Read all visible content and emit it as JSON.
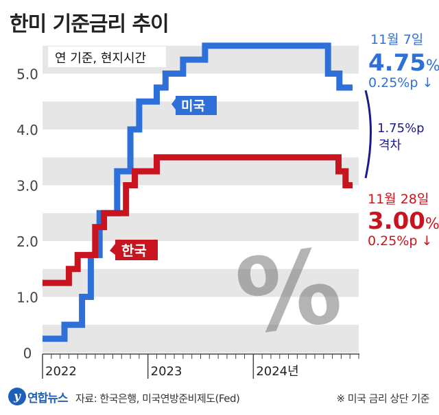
{
  "title": "한미 기준금리 추이",
  "note_inside": "연 기준, 현지시간",
  "footer": {
    "logo_text": "연합뉴스",
    "logo_mark": "y",
    "source": "자료: 한국은행, 미국연방준비제도(Fed)",
    "note": "※ 미국 금리 상단 기준"
  },
  "colors": {
    "us": "#2f6fd8",
    "kr": "#c8141e",
    "gap": "#1a1a8c",
    "band": "#e6e6e6"
  },
  "annotations": {
    "us_date": "11월 7일",
    "us_value": "4.75",
    "us_pct": "%",
    "us_change": "0.25%p ↓",
    "kr_date": "11월 28일",
    "kr_value": "3.00",
    "kr_pct": "%",
    "kr_change": "0.25%p ↓",
    "gap_value": "1.75%p",
    "gap_label": "격차",
    "us_tag": "미국",
    "kr_tag": "한국",
    "percent_symbol": "%"
  },
  "chart_data": {
    "type": "line",
    "step": true,
    "x_unit": "months since Jan 2022",
    "xlim": [
      0,
      36
    ],
    "ylim": [
      0,
      5.5
    ],
    "yticks": [
      "0",
      "1.0",
      "2.0",
      "3.0",
      "4.0",
      "5.0"
    ],
    "ytick_values": [
      0,
      1,
      2,
      3,
      4,
      5
    ],
    "xtick_labels": [
      "2022",
      "2023",
      "2024년"
    ],
    "xtick_positions": [
      0,
      12,
      24
    ],
    "series": [
      {
        "name": "미국",
        "points": [
          [
            0,
            0.25
          ],
          [
            2.5,
            0.25
          ],
          [
            2.5,
            0.5
          ],
          [
            4.5,
            0.5
          ],
          [
            4.5,
            1.0
          ],
          [
            5.5,
            1.0
          ],
          [
            5.5,
            1.75
          ],
          [
            6.5,
            1.75
          ],
          [
            6.5,
            2.5
          ],
          [
            8.5,
            2.5
          ],
          [
            8.5,
            3.25
          ],
          [
            10,
            3.25
          ],
          [
            10,
            4.0
          ],
          [
            11,
            4.0
          ],
          [
            11,
            4.5
          ],
          [
            13,
            4.5
          ],
          [
            13,
            4.75
          ],
          [
            14,
            4.75
          ],
          [
            14,
            5.0
          ],
          [
            16,
            5.0
          ],
          [
            16,
            5.25
          ],
          [
            18.5,
            5.25
          ],
          [
            18.5,
            5.5
          ],
          [
            32.5,
            5.5
          ],
          [
            32.5,
            5.0
          ],
          [
            33.8,
            5.0
          ],
          [
            33.8,
            4.75
          ],
          [
            35.3,
            4.75
          ]
        ]
      },
      {
        "name": "한국",
        "points": [
          [
            0,
            1.25
          ],
          [
            3,
            1.25
          ],
          [
            3,
            1.5
          ],
          [
            4,
            1.5
          ],
          [
            4,
            1.75
          ],
          [
            6,
            1.75
          ],
          [
            6,
            2.25
          ],
          [
            7,
            2.25
          ],
          [
            7,
            2.5
          ],
          [
            9.5,
            2.5
          ],
          [
            9.5,
            3.0
          ],
          [
            10.5,
            3.0
          ],
          [
            10.5,
            3.25
          ],
          [
            13,
            3.25
          ],
          [
            13,
            3.5
          ],
          [
            33.7,
            3.5
          ],
          [
            33.7,
            3.25
          ],
          [
            34.5,
            3.25
          ],
          [
            34.5,
            3.0
          ],
          [
            35.3,
            3.0
          ]
        ]
      }
    ]
  }
}
